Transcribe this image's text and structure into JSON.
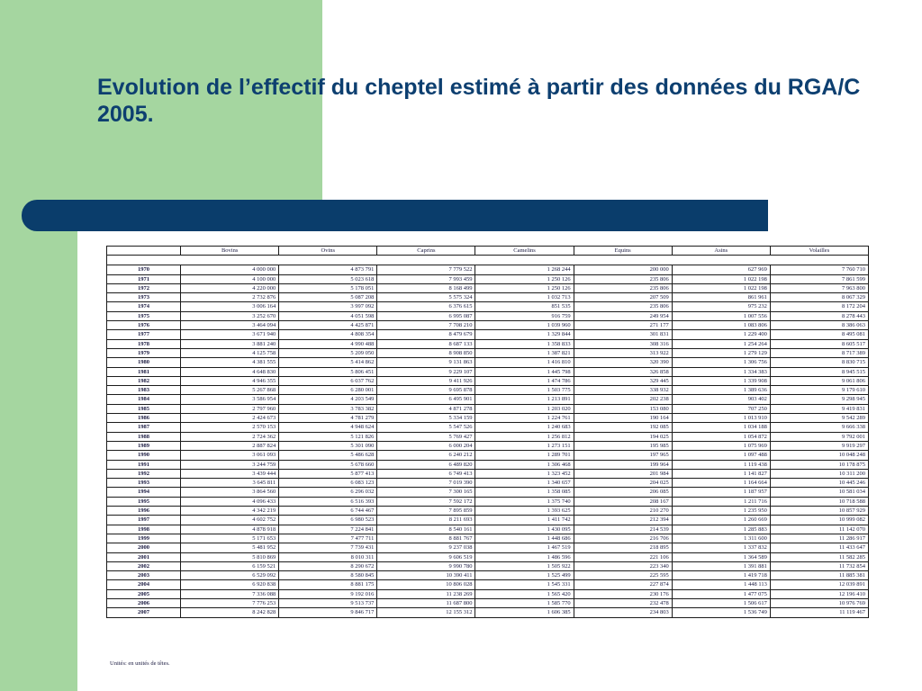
{
  "title": "Evolution de l’effectif du cheptel estimé à partir des données du RGA/C 2005.",
  "table": {
    "columns": [
      "Bovins",
      "Ovins",
      "Caprins",
      "Camelins",
      "Equins",
      "Asins",
      "Volailles"
    ],
    "rows": [
      {
        "year": "1970",
        "values": [
          "4 000 000",
          "4 873 791",
          "7 779 522",
          "1 268 244",
          "200 000",
          "627 969",
          "7 760 710"
        ]
      },
      {
        "year": "1971",
        "values": [
          "4 100 000",
          "5 023 618",
          "7 993 459",
          "1 250 126",
          "235 806",
          "1 022 198",
          "7 861 599"
        ]
      },
      {
        "year": "1972",
        "values": [
          "4 220 000",
          "5 178 051",
          "8 168 499",
          "1 250 126",
          "235 806",
          "1 022 198",
          "7 963 800"
        ]
      },
      {
        "year": "1973",
        "values": [
          "2 732 876",
          "5 087 208",
          "5 575 324",
          "1 032 713",
          "207 509",
          "861 961",
          "8 067 329"
        ]
      },
      {
        "year": "1974",
        "values": [
          "3 006 164",
          "3 997 092",
          "6 376 615",
          "851 535",
          "235 806",
          "975 232",
          "8 172 204"
        ]
      },
      {
        "year": "1975",
        "values": [
          "3 252 670",
          "4 051 598",
          "6 995 087",
          "916 759",
          "249 954",
          "1 007 556",
          "8 278 443"
        ]
      },
      {
        "year": "1976",
        "values": [
          "3 464 094",
          "4 425 871",
          "7 708 210",
          "1 039 960",
          "271 177",
          "1 083 806",
          "8 386 063"
        ]
      },
      {
        "year": "1977",
        "values": [
          "3 671 940",
          "4 808 354",
          "8 479 679",
          "1 329 844",
          "301 831",
          "1 229 400",
          "8 495 081"
        ]
      },
      {
        "year": "1978",
        "values": [
          "3 881 240",
          "4 990 488",
          "8 687 133",
          "1 358 833",
          "308 316",
          "1 254 264",
          "8 605 517"
        ]
      },
      {
        "year": "1979",
        "values": [
          "4 125 758",
          "5 209 050",
          "8 908 850",
          "1 387 821",
          "313 922",
          "1 279 129",
          "8 717 389"
        ]
      },
      {
        "year": "1980",
        "values": [
          "4 381 555",
          "5 414 862",
          "9 131 863",
          "1 416 810",
          "320 390",
          "1 306 756",
          "8 830 715"
        ]
      },
      {
        "year": "1981",
        "values": [
          "4 648 830",
          "5 806 451",
          "9 229 107",
          "1 445 798",
          "326 858",
          "1 334 383",
          "8 945 515"
        ]
      },
      {
        "year": "1982",
        "values": [
          "4 946 355",
          "6 037 762",
          "9 411 926",
          "1 474 786",
          "329 445",
          "1 339 908",
          "9 061 806"
        ]
      },
      {
        "year": "1983",
        "values": [
          "5 267 868",
          "6 280 001",
          "9 695 878",
          "1 503 775",
          "338 932",
          "1 389 636",
          "9 179 610"
        ]
      },
      {
        "year": "1984",
        "values": [
          "3 586 954",
          "4 203 549",
          "6 495 901",
          "1 213 891",
          "202 238",
          "903 402",
          "9 298 945"
        ]
      },
      {
        "year": "1985",
        "values": [
          "2 797 960",
          "3 783 382",
          "4 871 278",
          "1 203 020",
          "153 080",
          "707 250",
          "9 419 831"
        ]
      },
      {
        "year": "1986",
        "values": [
          "2 424 673",
          "4 781 279",
          "5 334 159",
          "1 224 761",
          "190 164",
          "1 013 910",
          "9 542 289"
        ]
      },
      {
        "year": "1987",
        "values": [
          "2 570 153",
          "4 948 624",
          "5 547 526",
          "1 240 683",
          "192 085",
          "1 034 188",
          "9 666 338"
        ]
      },
      {
        "year": "1988",
        "values": [
          "2 724 362",
          "5 121 826",
          "5 769 427",
          "1 256 812",
          "194 025",
          "1 054 872",
          "9 792 001"
        ]
      },
      {
        "year": "1989",
        "values": [
          "2 887 824",
          "5 301 090",
          "6 000 204",
          "1 273 151",
          "195 985",
          "1 075 969",
          "9 919 297"
        ]
      },
      {
        "year": "1990",
        "values": [
          "3 061 093",
          "5 486 628",
          "6 240 212",
          "1 289 701",
          "197 965",
          "1 097 488",
          "10 048 248"
        ]
      },
      {
        "year": "1991",
        "values": [
          "3 244 759",
          "5 678 660",
          "6 489 820",
          "1 306 468",
          "199 964",
          "1 119 438",
          "10 178 875"
        ]
      },
      {
        "year": "1992",
        "values": [
          "3 439 444",
          "5 877 413",
          "6 749 413",
          "1 323 452",
          "201 984",
          "1 141 827",
          "10 311 200"
        ]
      },
      {
        "year": "1993",
        "values": [
          "3 645 811",
          "6 083 123",
          "7 019 390",
          "1 340 657",
          "204 025",
          "1 164 664",
          "10 445 246"
        ]
      },
      {
        "year": "1994",
        "values": [
          "3 864 560",
          "6 296 032",
          "7 300 165",
          "1 358 085",
          "206 085",
          "1 187 957",
          "10 581 034"
        ]
      },
      {
        "year": "1995",
        "values": [
          "4 096 433",
          "6 516 393",
          "7 592 172",
          "1 375 740",
          "208 167",
          "1 211 716",
          "10 718 588"
        ]
      },
      {
        "year": "1996",
        "values": [
          "4 342 219",
          "6 744 467",
          "7 895 859",
          "1 393 625",
          "210 270",
          "1 235 950",
          "10 857 929"
        ]
      },
      {
        "year": "1997",
        "values": [
          "4 602 752",
          "6 980 523",
          "8 211 693",
          "1 411 742",
          "212 394",
          "1 260 669",
          "10 999 082"
        ]
      },
      {
        "year": "1998",
        "values": [
          "4 878 918",
          "7 224 841",
          "8 540 161",
          "1 430 095",
          "214 539",
          "1 285 883",
          "11 142 070"
        ]
      },
      {
        "year": "1999",
        "values": [
          "5 171 653",
          "7 477 711",
          "8 881 767",
          "1 448 686",
          "216 706",
          "1 311 600",
          "11 286 917"
        ]
      },
      {
        "year": "2000",
        "values": [
          "5 481 952",
          "7 739 431",
          "9 237 038",
          "1 467 519",
          "218 895",
          "1 337 832",
          "11 433 647"
        ]
      },
      {
        "year": "2001",
        "values": [
          "5 810 869",
          "8 010 311",
          "9 606 519",
          "1 486 596",
          "221 106",
          "1 364 589",
          "11 582 285"
        ]
      },
      {
        "year": "2002",
        "values": [
          "6 159 521",
          "8 290 672",
          "9 990 780",
          "1 505 922",
          "223 340",
          "1 391 881",
          "11 732 854"
        ]
      },
      {
        "year": "2003",
        "values": [
          "6 529 092",
          "8 580 845",
          "10 390 411",
          "1 525 499",
          "225 595",
          "1 419 718",
          "11 885 381"
        ]
      },
      {
        "year": "2004",
        "values": [
          "6 920 838",
          "8 881 175",
          "10 806 028",
          "1 545 331",
          "227 874",
          "1 448 113",
          "12 039 891"
        ]
      },
      {
        "year": "2005",
        "values": [
          "7 336 088",
          "9 192 016",
          "11 238 269",
          "1 565 420",
          "230 176",
          "1 477 075",
          "12 196 410"
        ]
      },
      {
        "year": "2006",
        "values": [
          "7 776 253",
          "9 513 737",
          "11 687 800",
          "1 585 770",
          "232 478",
          "1 506 617",
          "10 976 769"
        ]
      },
      {
        "year": "2007",
        "values": [
          "8 242 828",
          "9 846 717",
          "12 155 312",
          "1 606 385",
          "234 803",
          "1 536 749",
          "11 119 467"
        ]
      }
    ],
    "note": "Unités: en unités de têtes."
  }
}
